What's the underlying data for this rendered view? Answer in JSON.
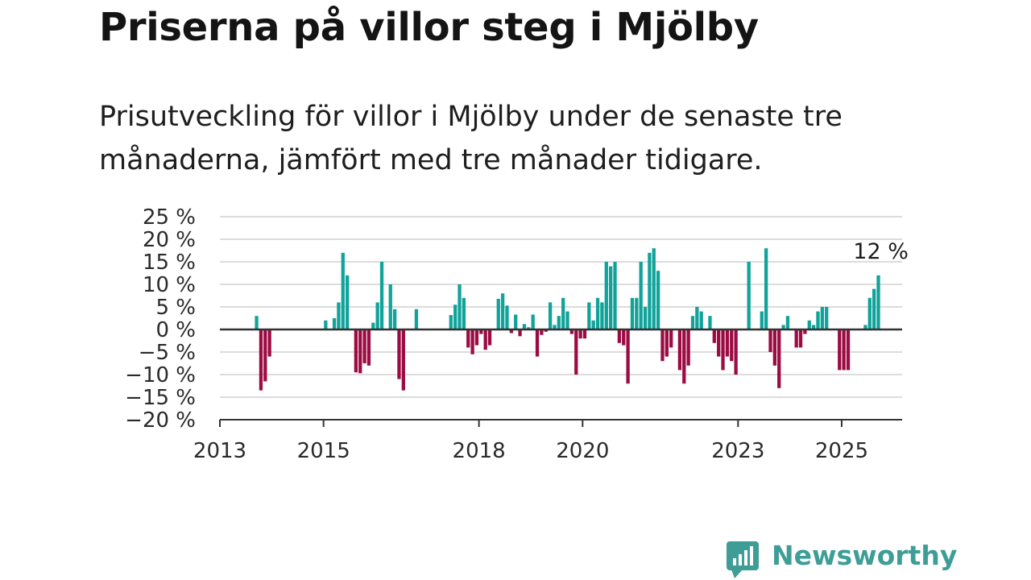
{
  "title": "Priserna på villor steg i Mjölby",
  "subtitle": "Prisutveckling för villor i Mjölby under de senaste tre månaderna, jämfört med tre månader tidigare.",
  "brand": {
    "name": "Newsworthy",
    "color": "#3e9e97",
    "icon": "newsworthy-logo-icon"
  },
  "colors": {
    "positive": "#11a39a",
    "negative": "#9c0c43",
    "grid": "#dcdcdc",
    "axis": "#333333"
  },
  "chart_data": {
    "type": "bar",
    "title": "",
    "xlabel": "",
    "ylabel": "",
    "ylim": [
      -20,
      25
    ],
    "xlim": [
      "2013-01",
      "2026-03"
    ],
    "grid": true,
    "y_ticks": [
      25,
      20,
      15,
      10,
      5,
      0,
      -5,
      -10,
      -15,
      -20
    ],
    "y_tick_labels": [
      "25 %",
      "20 %",
      "15 %",
      "10 %",
      "5 %",
      "0 %",
      "−5 %",
      "−10 %",
      "−15 %",
      "−20 %"
    ],
    "x_ticks": [
      "2013",
      "2015",
      "2018",
      "2020",
      "2023",
      "2025"
    ],
    "annotation": {
      "text": "12 %",
      "x": "2025-10",
      "y": 12
    },
    "series": [
      {
        "values": [
          [
            "2013-09",
            3
          ],
          [
            "2013-10",
            -13.5
          ],
          [
            "2013-11",
            -11.5
          ],
          [
            "2013-12",
            -6
          ],
          [
            "2015-01",
            2
          ],
          [
            "2015-03",
            2.5
          ],
          [
            "2015-04",
            6
          ],
          [
            "2015-05",
            17
          ],
          [
            "2015-06",
            12
          ],
          [
            "2015-08",
            -9.5
          ],
          [
            "2015-09",
            -9.7
          ],
          [
            "2015-10",
            -7.5
          ],
          [
            "2015-11",
            -8
          ],
          [
            "2015-12",
            1.5
          ],
          [
            "2016-01",
            6
          ],
          [
            "2016-02",
            15
          ],
          [
            "2016-04",
            10
          ],
          [
            "2016-05",
            4.5
          ],
          [
            "2016-06",
            -11
          ],
          [
            "2016-07",
            -13.5
          ],
          [
            "2016-10",
            4.5
          ],
          [
            "2017-06",
            3.2
          ],
          [
            "2017-07",
            5.5
          ],
          [
            "2017-08",
            10
          ],
          [
            "2017-09",
            7
          ],
          [
            "2017-10",
            -4
          ],
          [
            "2017-11",
            -5.5
          ],
          [
            "2017-12",
            -3.5
          ],
          [
            "2018-01",
            -1
          ],
          [
            "2018-02",
            -4.5
          ],
          [
            "2018-03",
            -3.5
          ],
          [
            "2018-05",
            6.8
          ],
          [
            "2018-06",
            8
          ],
          [
            "2018-07",
            5.3
          ],
          [
            "2018-08",
            -0.8
          ],
          [
            "2018-09",
            3.3
          ],
          [
            "2018-10",
            -1.5
          ],
          [
            "2018-11",
            1.2
          ],
          [
            "2018-12",
            0.5
          ],
          [
            "2019-01",
            3.3
          ],
          [
            "2019-02",
            -6
          ],
          [
            "2019-03",
            -1.2
          ],
          [
            "2019-04",
            -0.5
          ],
          [
            "2019-05",
            6
          ],
          [
            "2019-06",
            1
          ],
          [
            "2019-07",
            3
          ],
          [
            "2019-08",
            7
          ],
          [
            "2019-09",
            4
          ],
          [
            "2019-10",
            -1
          ],
          [
            "2019-11",
            -10
          ],
          [
            "2019-12",
            -2
          ],
          [
            "2020-01",
            -2
          ],
          [
            "2020-02",
            6
          ],
          [
            "2020-03",
            2
          ],
          [
            "2020-04",
            7
          ],
          [
            "2020-05",
            6
          ],
          [
            "2020-06",
            15
          ],
          [
            "2020-07",
            14
          ],
          [
            "2020-08",
            15
          ],
          [
            "2020-09",
            -3
          ],
          [
            "2020-10",
            -3.5
          ],
          [
            "2020-11",
            -12
          ],
          [
            "2020-12",
            7
          ],
          [
            "2021-01",
            7
          ],
          [
            "2021-02",
            15
          ],
          [
            "2021-03",
            5
          ],
          [
            "2021-04",
            17
          ],
          [
            "2021-05",
            18
          ],
          [
            "2021-06",
            13
          ],
          [
            "2021-07",
            -7
          ],
          [
            "2021-08",
            -6
          ],
          [
            "2021-09",
            -4
          ],
          [
            "2021-11",
            -9
          ],
          [
            "2021-12",
            -12
          ],
          [
            "2022-01",
            -8
          ],
          [
            "2022-02",
            3
          ],
          [
            "2022-03",
            5
          ],
          [
            "2022-04",
            4
          ],
          [
            "2022-06",
            3
          ],
          [
            "2022-07",
            -3
          ],
          [
            "2022-08",
            -6
          ],
          [
            "2022-09",
            -9
          ],
          [
            "2022-10",
            -6
          ],
          [
            "2022-11",
            -7
          ],
          [
            "2022-12",
            -10
          ],
          [
            "2023-03",
            15
          ],
          [
            "2023-06",
            4
          ],
          [
            "2023-07",
            18
          ],
          [
            "2023-08",
            -5
          ],
          [
            "2023-09",
            -8
          ],
          [
            "2023-10",
            -13
          ],
          [
            "2023-11",
            1
          ],
          [
            "2023-12",
            3
          ],
          [
            "2024-02",
            -4
          ],
          [
            "2024-03",
            -4
          ],
          [
            "2024-04",
            -1
          ],
          [
            "2024-05",
            2
          ],
          [
            "2024-06",
            1
          ],
          [
            "2024-07",
            4
          ],
          [
            "2024-08",
            5
          ],
          [
            "2024-09",
            5
          ],
          [
            "2024-12",
            -9
          ],
          [
            "2025-01",
            -9
          ],
          [
            "2025-02",
            -9
          ],
          [
            "2025-06",
            1
          ],
          [
            "2025-07",
            7
          ],
          [
            "2025-08",
            9
          ],
          [
            "2025-09",
            12
          ]
        ]
      }
    ]
  }
}
